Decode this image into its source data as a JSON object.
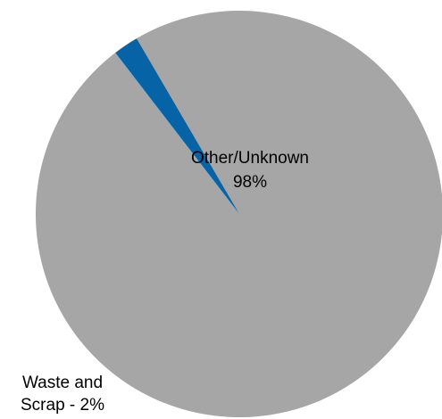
{
  "chart_data": {
    "type": "pie",
    "title": "",
    "slices": [
      {
        "label": "Other/Unknown",
        "value": 98,
        "value_label": "98%",
        "color": "#a6a6a6"
      },
      {
        "label": "Waste and Scrap",
        "value": 2,
        "value_label": "Waste and Scrap - 2%",
        "color": "#0563a6"
      }
    ],
    "legend": "none"
  }
}
